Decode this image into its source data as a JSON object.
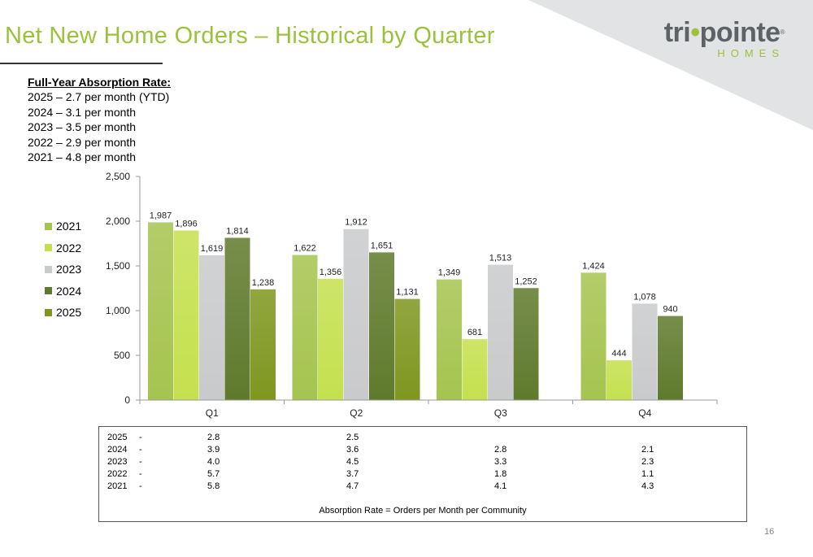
{
  "title": "Net New Home Orders – Historical by Quarter",
  "logo": {
    "main_a": "tri",
    "main_b": "pointe",
    "registered": "®",
    "sub": "HOMES"
  },
  "absorption_summary": {
    "heading": "Full-Year Absorption Rate:",
    "lines": [
      "2025 – 2.7 per month (YTD)",
      "2024 – 3.1 per month",
      "2023 – 3.5 per month",
      "2022 – 2.9 per month",
      "2021 – 4.8 per month"
    ]
  },
  "chart_data": {
    "type": "bar",
    "categories": [
      "Q1",
      "Q2",
      "Q3",
      "Q4"
    ],
    "series": [
      {
        "name": "2021",
        "color": "#a5c44f",
        "values": [
          1987,
          1622,
          1349,
          1424
        ],
        "labels": [
          "1,987",
          "1,622",
          "1,349",
          "1,424"
        ]
      },
      {
        "name": "2022",
        "color": "#c5e04e",
        "values": [
          1896,
          1356,
          681,
          444
        ],
        "labels": [
          "1,896",
          "1,356",
          "681",
          "444"
        ]
      },
      {
        "name": "2023",
        "color": "#c9cacc",
        "values": [
          1619,
          1912,
          1513,
          1078
        ],
        "labels": [
          "1,619",
          "1,912",
          "1,513",
          "1,078"
        ]
      },
      {
        "name": "2024",
        "color": "#5f7a2c",
        "values": [
          1814,
          1651,
          1252,
          940
        ],
        "labels": [
          "1,814",
          "1,651",
          "1,252",
          "940"
        ]
      },
      {
        "name": "2025",
        "color": "#7f961f",
        "values": [
          1238,
          1131,
          null,
          null
        ],
        "labels": [
          "1,238",
          "1,131",
          "",
          ""
        ]
      }
    ],
    "y_ticks": [
      0,
      500,
      1000,
      1500,
      2000,
      2500
    ],
    "y_tick_labels": [
      "0",
      "500",
      "1,000",
      "1,500",
      "2,000",
      "2,500"
    ],
    "ylim": [
      0,
      2500
    ],
    "legend_position": "left",
    "grid": false
  },
  "absorption_table": {
    "rows": [
      {
        "year": "2025",
        "dash": "-",
        "values": [
          "2.8",
          "2.5",
          "",
          ""
        ]
      },
      {
        "year": "2024",
        "dash": "-",
        "values": [
          "3.9",
          "3.6",
          "2.8",
          "2.1"
        ]
      },
      {
        "year": "2023",
        "dash": "-",
        "values": [
          "4.0",
          "4.5",
          "3.3",
          "2.3"
        ]
      },
      {
        "year": "2022",
        "dash": "-",
        "values": [
          "5.7",
          "3.7",
          "1.8",
          "1.1"
        ]
      },
      {
        "year": "2021",
        "dash": "-",
        "values": [
          "5.8",
          "4.7",
          "4.1",
          "4.3"
        ]
      }
    ],
    "footer": "Absorption Rate = Orders per Month per Community"
  },
  "page_number": "16"
}
